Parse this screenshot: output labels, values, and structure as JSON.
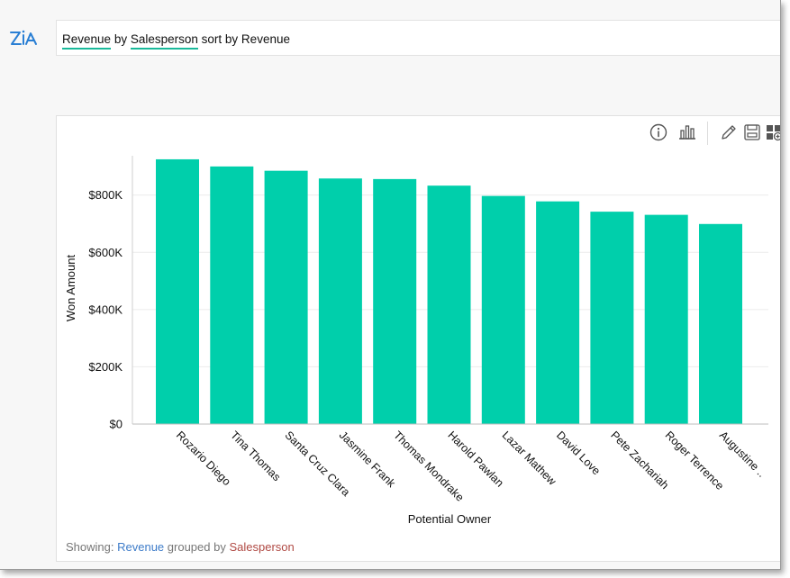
{
  "query": {
    "tokens": [
      "Revenue",
      "by",
      "Salesperson",
      "sort by Revenue"
    ]
  },
  "toolbar": {
    "icons": [
      "info-icon",
      "chart-type-icon",
      "edit-icon",
      "save-icon",
      "add-to-dashboard-icon"
    ]
  },
  "footer": {
    "prefix": "Showing:",
    "measure": "Revenue",
    "middle": "grouped by",
    "dimension": "Salesperson"
  },
  "colors": {
    "bar": "#00cfab",
    "accent_underline": "#19b99a",
    "measure_link": "#3e7cc9",
    "dimension_link": "#b04a44"
  },
  "chart_data": {
    "type": "bar",
    "xlabel": "Potential Owner",
    "ylabel": "Won Amount",
    "categories": [
      "Rozario Diego",
      "Tina Thomas",
      "Santa Cruz Clara",
      "Jasmine Frank",
      "Thomas Mondrake",
      "Harold Pawlan",
      "Lazar Mathew",
      "David Love",
      "Pete Zachariah",
      "Roger Terrence",
      "Augustine .."
    ],
    "series": [
      {
        "values": [
          925000,
          900000,
          885000,
          858000,
          856000,
          833000,
          797000,
          778000,
          742000,
          731000,
          699000
        ]
      }
    ],
    "ylim": [
      0,
      950000
    ],
    "yticks": [
      0,
      200000,
      400000,
      600000,
      800000
    ],
    "ytick_labels": [
      "$0",
      "$200K",
      "$400K",
      "$600K",
      "$800K"
    ],
    "grid": true,
    "legend": "none"
  }
}
